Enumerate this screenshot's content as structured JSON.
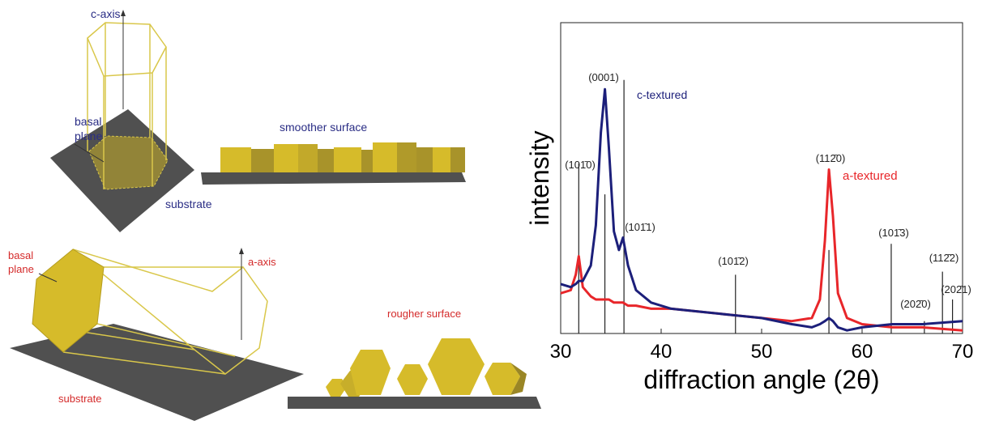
{
  "diagram": {
    "c_axis": "c-axis",
    "top_basal_plane": [
      "basal",
      "plane"
    ],
    "top_substrate": "substrate",
    "smoother": "smoother surface",
    "bottom_basal_plane": [
      "basal",
      "plane"
    ],
    "a_axis": "a-axis",
    "bottom_substrate": "substrate",
    "rougher": "rougher surface"
  },
  "chart_data": {
    "type": "line",
    "xlabel": "diffraction angle (2θ)",
    "ylabel": "intensity",
    "xlim": [
      30,
      70
    ],
    "xticks": [
      30,
      40,
      50,
      60,
      70
    ],
    "ylim": [
      0,
      100
    ],
    "x": [
      30,
      31,
      31.5,
      31.8,
      32.2,
      33,
      33.5,
      34,
      34.4,
      34.8,
      35.3,
      35.8,
      36.2,
      36.7,
      37.5,
      39,
      41,
      44,
      47,
      50,
      53,
      55,
      55.8,
      56.3,
      56.7,
      57.1,
      57.6,
      58.5,
      60,
      63,
      66,
      70
    ],
    "series": [
      {
        "name": "c-textured",
        "color": "#1c1f7a",
        "values": [
          16,
          15,
          16,
          17,
          17,
          22,
          35,
          65,
          79,
          60,
          33,
          27,
          31,
          22,
          14,
          10,
          8,
          7,
          6,
          5,
          3,
          2,
          3,
          4,
          5,
          4,
          2,
          1,
          2,
          3,
          3,
          4
        ]
      },
      {
        "name": "a-textured",
        "color": "#e8262a",
        "values": [
          13,
          14,
          19,
          25,
          15,
          12,
          11,
          11,
          11,
          11,
          10,
          10,
          10,
          9,
          9,
          8,
          8,
          7,
          6,
          5,
          4,
          5,
          11,
          30,
          53,
          38,
          13,
          5,
          3,
          2,
          2,
          1
        ]
      }
    ],
    "peaks": [
      {
        "label": "(101̄0)",
        "position": 31.8,
        "height": 55
      },
      {
        "label": "(0001)",
        "position": 34.4,
        "height": 45
      },
      {
        "label": "(101̄1)",
        "position": 36.3,
        "height": 82
      },
      {
        "label": "(101̄2)",
        "position": 47.4,
        "height": 19
      },
      {
        "label": "(112̄0)",
        "position": 56.7,
        "height": 27
      },
      {
        "label": "(101̄3)",
        "position": 62.9,
        "height": 29
      },
      {
        "label": "(202̄0)",
        "position": 66.2,
        "height": 4
      },
      {
        "label": "(112̄2)",
        "position": 68.0,
        "height": 20
      },
      {
        "label": "(202̄1)",
        "position": 69.0,
        "height": 11
      }
    ]
  }
}
